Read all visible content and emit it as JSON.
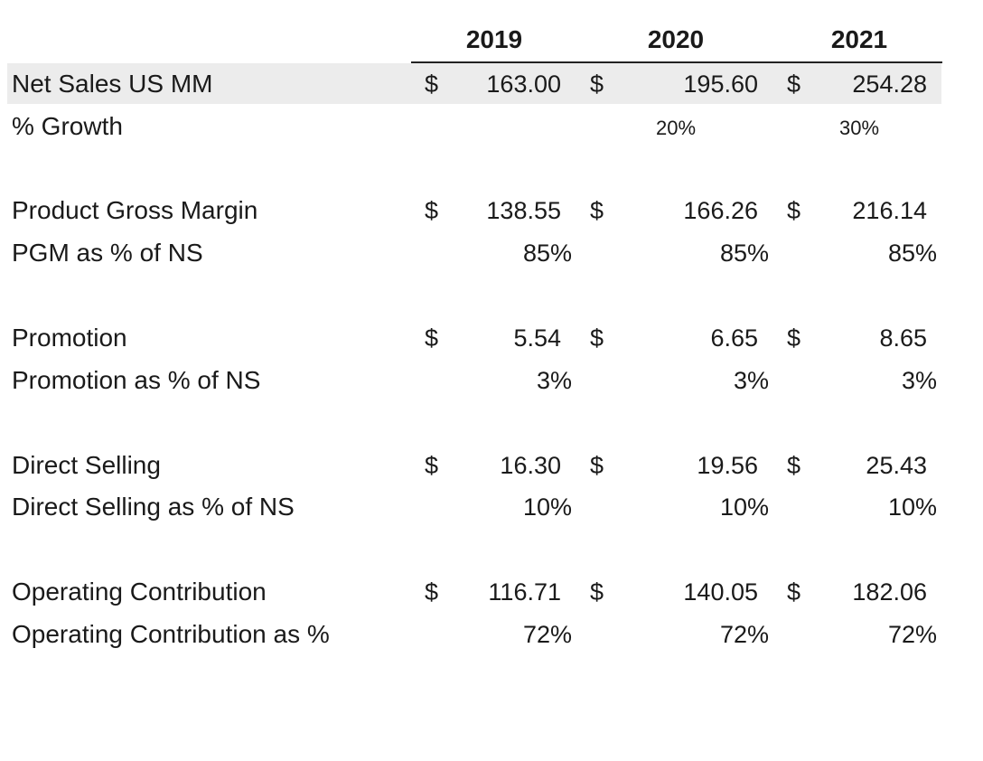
{
  "years": [
    "2019",
    "2020",
    "2021"
  ],
  "currency_symbol": "$",
  "rows": [
    {
      "label": "Net Sales US MM",
      "type": "money",
      "values": [
        "163.00",
        "195.60",
        "254.28"
      ]
    },
    {
      "label": "% Growth",
      "type": "growth",
      "values": [
        "",
        "20%",
        "30%"
      ]
    },
    {
      "label": "Product Gross Margin",
      "type": "money",
      "values": [
        "138.55",
        "166.26",
        "216.14"
      ]
    },
    {
      "label": "PGM as % of NS",
      "type": "pct",
      "values": [
        "85%",
        "85%",
        "85%"
      ]
    },
    {
      "label": "Promotion",
      "type": "money",
      "values": [
        "5.54",
        "6.65",
        "8.65"
      ]
    },
    {
      "label": "Promotion as % of NS",
      "type": "pct",
      "values": [
        "3%",
        "3%",
        "3%"
      ]
    },
    {
      "label": "Direct Selling",
      "type": "money",
      "values": [
        "16.30",
        "19.56",
        "25.43"
      ]
    },
    {
      "label": "Direct Selling as % of NS",
      "type": "pct",
      "values": [
        "10%",
        "10%",
        "10%"
      ]
    },
    {
      "label": "Operating Contribution",
      "type": "money",
      "values": [
        "116.71",
        "140.05",
        "182.06"
      ]
    },
    {
      "label": "Operating Contribution as %",
      "type": "pct",
      "values": [
        "72%",
        "72%",
        "72%"
      ]
    }
  ]
}
